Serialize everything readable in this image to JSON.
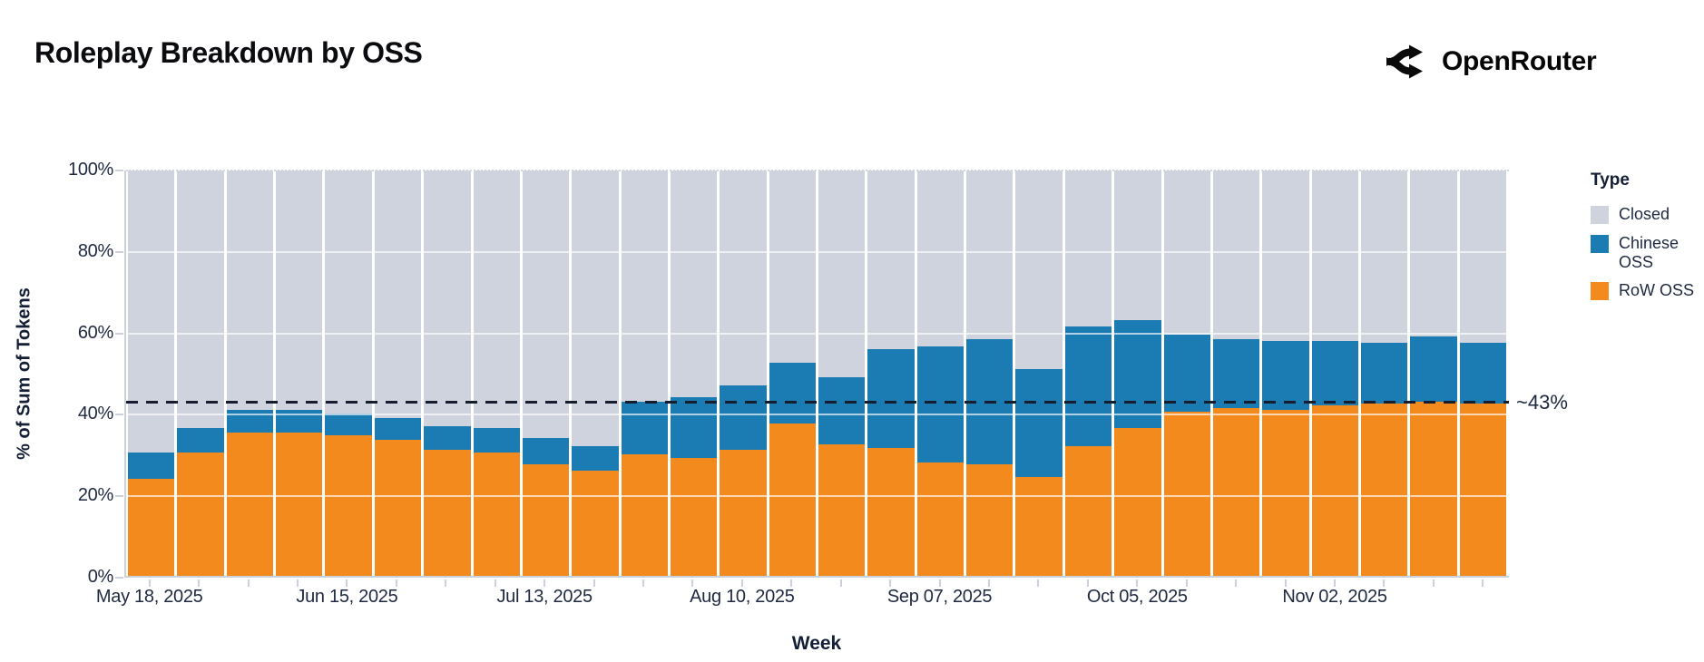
{
  "header": {
    "title": "Roleplay Breakdown by OSS"
  },
  "brand": {
    "name": "OpenRouter",
    "icon": "openrouter-fork-icon"
  },
  "chart_data": {
    "type": "bar",
    "stacked": true,
    "title": "Roleplay Breakdown by OSS",
    "xlabel": "Week",
    "ylabel": "% of Sum of Tokens",
    "ylim": [
      0,
      100
    ],
    "y_ticks": [
      0,
      20,
      40,
      60,
      80,
      100
    ],
    "y_tick_suffix": "%",
    "x_label_every": 4,
    "categories": [
      "May 18, 2025",
      "May 25, 2025",
      "Jun 01, 2025",
      "Jun 08, 2025",
      "Jun 15, 2025",
      "Jun 22, 2025",
      "Jun 29, 2025",
      "Jul 06, 2025",
      "Jul 13, 2025",
      "Jul 20, 2025",
      "Jul 27, 2025",
      "Aug 03, 2025",
      "Aug 10, 2025",
      "Aug 17, 2025",
      "Aug 24, 2025",
      "Aug 31, 2025",
      "Sep 07, 2025",
      "Sep 14, 2025",
      "Sep 21, 2025",
      "Sep 28, 2025",
      "Oct 05, 2025",
      "Oct 12, 2025",
      "Oct 19, 2025",
      "Oct 26, 2025",
      "Nov 02, 2025",
      "Nov 09, 2025",
      "Nov 16, 2025",
      "Nov 23, 2025"
    ],
    "visible_x_tick_labels": [
      "May 18, 2025",
      "Jun 15, 2025",
      "Jul 13, 2025",
      "Aug 10, 2025",
      "Sep 07, 2025",
      "Oct 05, 2025",
      "Nov 02, 2025"
    ],
    "stack_order_bottom_to_top": [
      "RoW OSS",
      "Chinese OSS",
      "Closed"
    ],
    "series": [
      {
        "name": "RoW OSS",
        "color": "#F28A1E",
        "values": [
          24,
          30.4,
          35.3,
          35.3,
          34.7,
          33.5,
          31,
          30.5,
          27.5,
          26,
          30,
          29,
          31,
          37.5,
          32.5,
          31.5,
          28,
          27.5,
          24.5,
          32,
          36.5,
          40.5,
          41.5,
          41,
          42,
          42.5,
          43,
          42.5
        ]
      },
      {
        "name": "Chinese OSS",
        "color": "#1A7CB2",
        "values": [
          6.5,
          6.1,
          5.7,
          5.7,
          5.3,
          5.5,
          6,
          6,
          6.5,
          6,
          13,
          15,
          16,
          15,
          16.5,
          24.5,
          28.5,
          31,
          26.5,
          29.5,
          26.5,
          19,
          17,
          17,
          16,
          15,
          16,
          15
        ]
      },
      {
        "name": "Closed",
        "color": "#CFD3DE",
        "values": [
          69.5,
          63.5,
          59,
          59,
          60,
          61,
          63,
          63.5,
          66,
          68,
          57,
          56,
          53,
          47.5,
          51,
          44,
          43.5,
          41.5,
          49,
          38.5,
          37,
          40.5,
          41.5,
          42,
          42,
          42.5,
          41,
          42.5
        ]
      }
    ],
    "reference_line": {
      "value": 43,
      "label": "~43%",
      "color": "#151D2E",
      "style": "dashed"
    },
    "legend": {
      "title": "Type",
      "position": "right",
      "entries": [
        {
          "label": "Closed",
          "color": "#CFD3DE"
        },
        {
          "label": "Chinese OSS",
          "color": "#1A7CB2"
        },
        {
          "label": "RoW OSS",
          "color": "#F28A1E"
        }
      ]
    },
    "grid": {
      "horizontal": true,
      "color": "white",
      "step": 20
    }
  }
}
